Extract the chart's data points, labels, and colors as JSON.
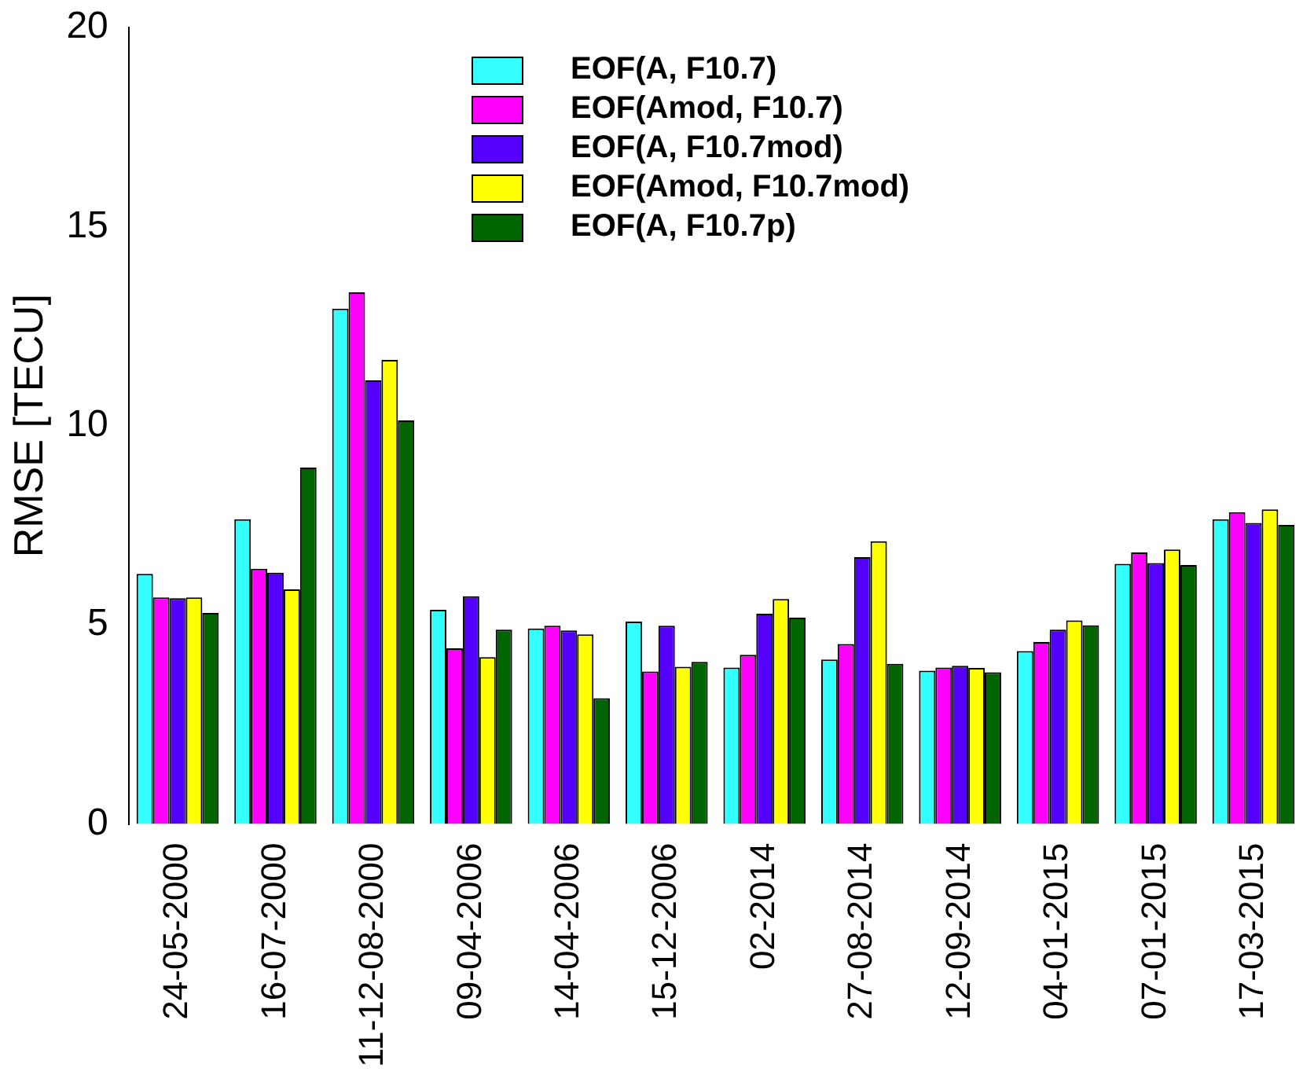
{
  "chart_data": {
    "type": "bar",
    "ylabel": "RMSE [TECU]",
    "categories": [
      "24-05-2000",
      "16-07-2000",
      "11-12-08-2000",
      "09-04-2006",
      "14-04-2006",
      "15-12-2006",
      "02-2014",
      "27-08-2014",
      "12-09-2014",
      "04-01-2015",
      "07-01-2015",
      "17-03-2015"
    ],
    "series": [
      {
        "name": "EOF(A, F10.7)",
        "color": "#33ffff",
        "values": [
          6.28,
          7.65,
          12.94,
          5.38,
          4.91,
          5.08,
          3.93,
          4.13,
          3.85,
          4.34,
          6.53,
          7.65
        ]
      },
      {
        "name": "EOF(Amod, F10.7)",
        "color": "#ff00ff",
        "values": [
          5.69,
          6.41,
          13.35,
          4.41,
          4.98,
          3.83,
          4.25,
          4.52,
          3.93,
          4.57,
          6.82,
          7.83
        ]
      },
      {
        "name": "EOF(A, F10.7mod)",
        "color": "#5500ff",
        "values": [
          5.67,
          6.31,
          11.14,
          5.72,
          4.86,
          4.98,
          5.28,
          6.7,
          3.97,
          4.88,
          6.55,
          7.56
        ]
      },
      {
        "name": "EOF(Amod, F10.7mod)",
        "color": "#ffff00",
        "values": [
          5.69,
          5.89,
          11.65,
          4.19,
          4.76,
          3.95,
          5.65,
          7.1,
          3.92,
          5.11,
          6.89,
          7.9
        ]
      },
      {
        "name": "EOF(A, F10.7p)",
        "color": "#006400",
        "values": [
          5.3,
          8.95,
          10.13,
          4.88,
          3.16,
          4.07,
          5.18,
          4.02,
          3.81,
          4.99,
          6.5,
          7.51
        ]
      }
    ],
    "ylim": [
      0,
      20
    ],
    "yticks": [
      0,
      5,
      10,
      15,
      20
    ],
    "legend": "top"
  }
}
